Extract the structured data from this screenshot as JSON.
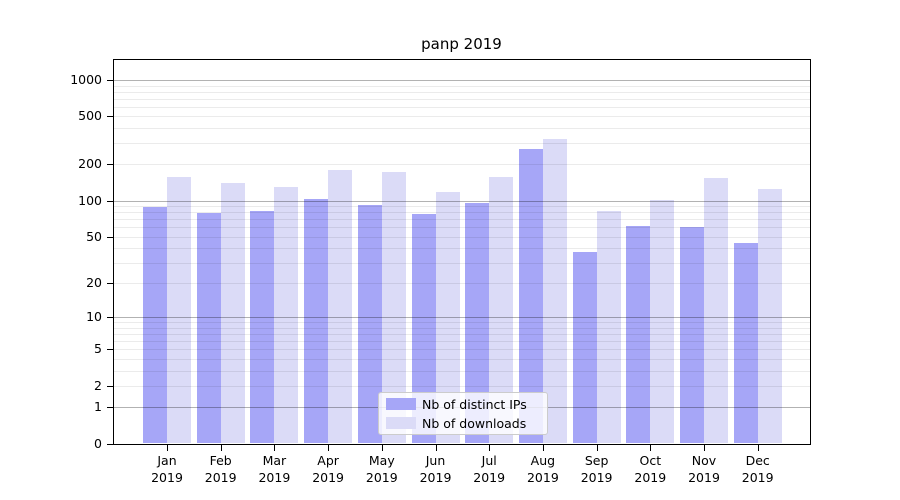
{
  "title": "panp 2019",
  "legend": {
    "items": [
      {
        "label": "Nb of distinct IPs"
      },
      {
        "label": "Nb of downloads"
      }
    ],
    "background": "rgba(255,255,255,0.8)",
    "border_color": "#cccccc"
  },
  "colors": {
    "bar_distinct_ips": "#a6a6f7",
    "bar_downloads": "#dbdbf7",
    "grid_major": "rgba(0,0,0,0.30)",
    "grid_minor": "rgba(0,0,0,0.08)",
    "axis": "#000000",
    "background": "#ffffff"
  },
  "chart_data": {
    "type": "bar",
    "title": "panp 2019",
    "categories": [
      "Jan 2019",
      "Feb 2019",
      "Mar 2019",
      "Apr 2019",
      "May 2019",
      "Jun 2019",
      "Jul 2019",
      "Aug 2019",
      "Sep 2019",
      "Oct 2019",
      "Nov 2019",
      "Dec 2019"
    ],
    "x_months": [
      "Jan",
      "Feb",
      "Mar",
      "Apr",
      "May",
      "Jun",
      "Jul",
      "Aug",
      "Sep",
      "Oct",
      "Nov",
      "Dec"
    ],
    "x_year": "2019",
    "series": [
      {
        "name": "Nb of distinct IPs",
        "color": "#a6a6f7",
        "values": [
          88,
          79,
          82,
          104,
          92,
          78,
          95,
          270,
          37,
          61,
          60,
          44
        ]
      },
      {
        "name": "Nb of downloads",
        "color": "#dbdbf7",
        "values": [
          156,
          139,
          129,
          180,
          174,
          117,
          158,
          325,
          82,
          101,
          153,
          126
        ]
      }
    ],
    "xlabel": "",
    "ylabel": "",
    "yscale": "log1p",
    "yticks": [
      0,
      1,
      2,
      5,
      10,
      20,
      50,
      100,
      200,
      500,
      1000
    ],
    "ylim": [
      0,
      1500
    ],
    "grid": "both",
    "legend_position": "inside-lower-center"
  }
}
